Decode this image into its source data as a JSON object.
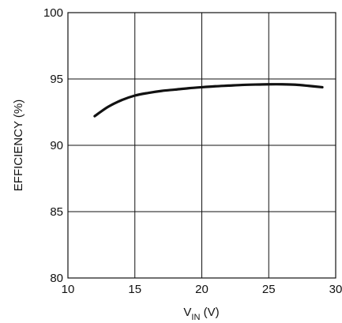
{
  "chart_data": {
    "type": "line",
    "xlabel_main": "V",
    "xlabel_sub": "IN",
    "xlabel_unit": " (V)",
    "ylabel": "EFFICIENCY (%)",
    "xlim": [
      10,
      30
    ],
    "ylim": [
      80,
      100
    ],
    "xticks": [
      10,
      15,
      20,
      25,
      30
    ],
    "yticks": [
      80,
      85,
      90,
      95,
      100
    ],
    "grid": true,
    "colors": {
      "line": "#111111",
      "grid": "#111111",
      "background": "#ffffff"
    },
    "series": [
      {
        "x": [
          12,
          13,
          14,
          15,
          16,
          17,
          18,
          19,
          20,
          21,
          22,
          23,
          24,
          25,
          26,
          27,
          28,
          29
        ],
        "y": [
          92.2,
          92.9,
          93.4,
          93.75,
          93.95,
          94.1,
          94.2,
          94.3,
          94.38,
          94.45,
          94.5,
          94.55,
          94.58,
          94.6,
          94.6,
          94.57,
          94.48,
          94.38
        ]
      }
    ]
  }
}
